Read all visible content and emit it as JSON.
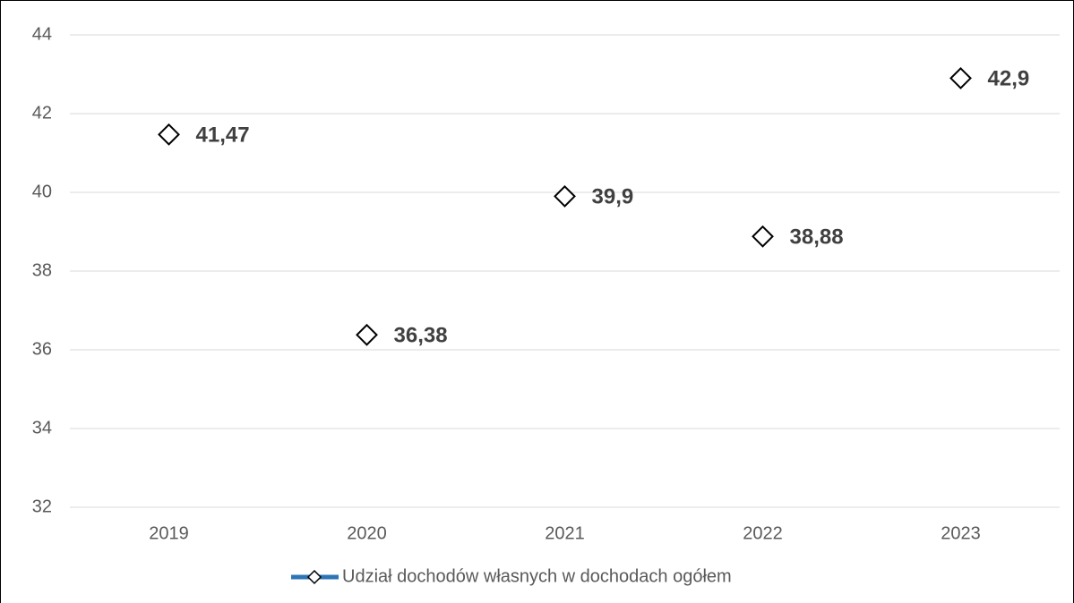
{
  "chart_data": {
    "type": "line",
    "categories": [
      "2019",
      "2020",
      "2021",
      "2022",
      "2023"
    ],
    "series": [
      {
        "name": "Udział dochodów własnych w dochodach ogółem",
        "color": "#2e75b6",
        "values": [
          41.47,
          36.38,
          39.9,
          38.88,
          42.9
        ],
        "value_labels": [
          "41,47",
          "36,38",
          "39,9",
          "38,88",
          "42,9"
        ]
      }
    ],
    "ylim": [
      32,
      44
    ],
    "yticks": [
      32,
      34,
      36,
      38,
      40,
      42,
      44
    ],
    "grid": true,
    "legend": "bottom"
  }
}
